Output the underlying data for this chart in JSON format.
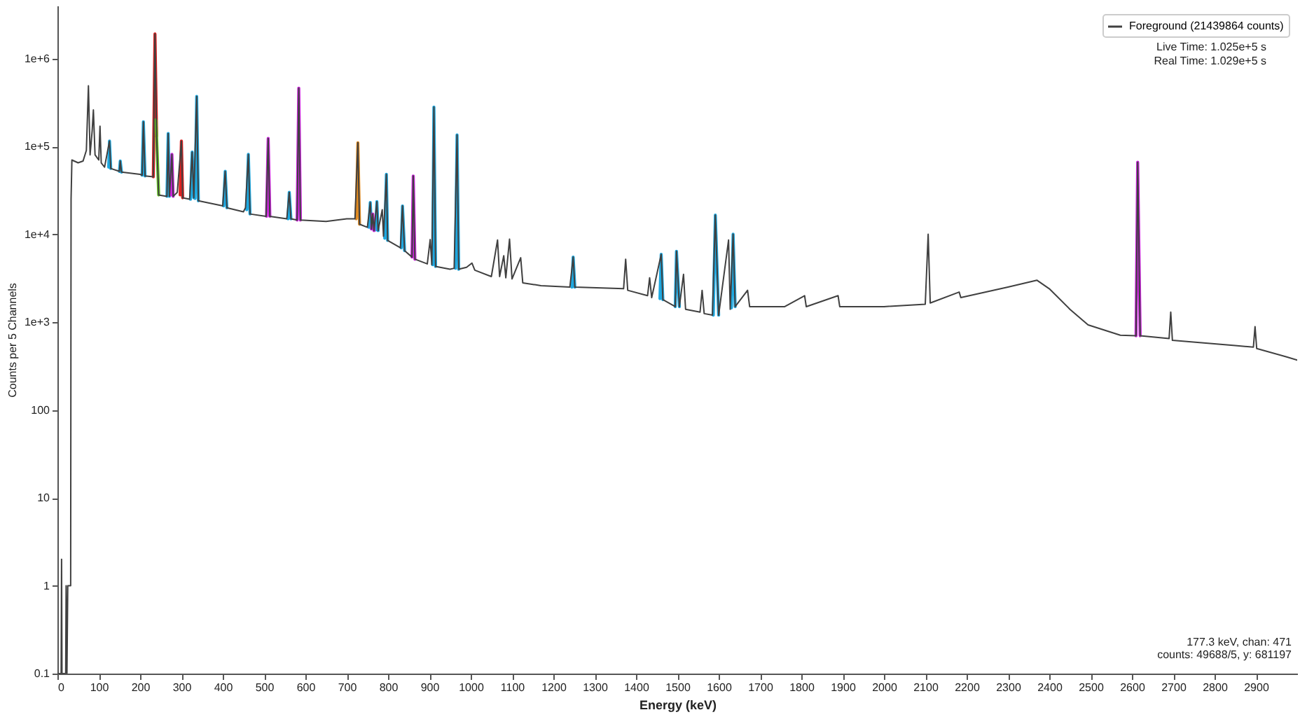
{
  "chart_data": {
    "type": "line",
    "xlabel": "Energy (keV)",
    "ylabel": "Counts per 5 Channels",
    "log": "y",
    "legend": "top right",
    "marker": "none",
    "line_style": "solid",
    "xlim": [
      0,
      3000
    ],
    "xticks": [
      0,
      100,
      200,
      300,
      400,
      500,
      600,
      700,
      800,
      900,
      1000,
      1100,
      1200,
      1300,
      1400,
      1500,
      1600,
      1700,
      1800,
      1900,
      2000,
      2100,
      2200,
      2300,
      2400,
      2500,
      2600,
      2700,
      2800,
      2900
    ],
    "ylim": [
      0.1,
      4000000
    ],
    "yticks": [
      0.1,
      1,
      10,
      100,
      {
        "value": 1000,
        "label": "1e+3"
      },
      {
        "value": 10000,
        "label": "1e+4"
      },
      {
        "value": 100000,
        "label": "1e+5"
      },
      {
        "value": 1000000,
        "label": "1e+6"
      }
    ],
    "annotations": [
      "Live Time: 1.025e+5 s",
      "Real Time: 1.029e+5 s",
      "177.3 keV, chan: 471",
      "counts: 49688/5, y: 681197"
    ],
    "series": [
      {
        "name": "Foreground (21439864 counts)",
        "color": "#404040",
        "x": [
          0,
          9,
          10,
          11,
          20,
          21,
          23,
          25,
          29,
          32,
          33,
          35,
          50,
          62,
          70,
          75,
          79,
          84,
          87,
          91,
          100,
          103,
          106,
          114,
          126,
          129,
          150,
          152,
          155,
          200,
          205,
          208,
          212,
          232,
          236,
          240,
          245,
          265,
          268,
          271,
          277,
          280,
          290,
          300,
          303,
          320,
          326,
          330,
          337,
          341,
          400,
          406,
          410,
          450,
          455,
          462,
          466,
          505,
          510,
          514,
          555,
          561,
          565,
          580,
          584,
          588,
          650,
          700,
          720,
          727,
          731,
          750,
          757,
          760,
          763,
          766,
          773,
          776,
          786,
          789,
          796,
          799,
          830,
          835,
          840,
          858,
          861,
          865,
          895,
          902,
          906,
          911,
          915,
          950,
          960,
          967,
          971,
          990,
          1003,
          1010,
          1050,
          1065,
          1070,
          1080,
          1085,
          1094,
          1100,
          1121,
          1126,
          1170,
          1240,
          1248,
          1252,
          1370,
          1375,
          1380,
          1428,
          1433,
          1438,
          1461,
          1465,
          1495,
          1498,
          1505,
          1515,
          1520,
          1555,
          1560,
          1565,
          1585,
          1592,
          1600,
          1624,
          1628,
          1635,
          1640,
          1670,
          1675,
          1760,
          1808,
          1812,
          1889,
          1893,
          2000,
          2100,
          2107,
          2112,
          2182,
          2186,
          2300,
          2370,
          2400,
          2450,
          2494,
          2572,
          2610,
          2614,
          2620,
          2690,
          2694,
          2698,
          2774,
          2850,
          2894,
          2898,
          2902,
          2976,
          3000
        ],
        "values": [
          0.1,
          0.1,
          2,
          0.1,
          0.1,
          1,
          0.1,
          1,
          1,
          1,
          25000,
          70000,
          65000,
          68000,
          90000,
          490000,
          80000,
          150000,
          260000,
          80000,
          70000,
          170000,
          65000,
          58000,
          115000,
          56000,
          52000,
          68000,
          51000,
          48000,
          47000,
          190000,
          46000,
          45000,
          1900000,
          130000,
          28000,
          27000,
          140000,
          27000,
          81000,
          27000,
          30000,
          115000,
          26000,
          25000,
          86000,
          26000,
          370000,
          24000,
          21000,
          52000,
          20000,
          18000,
          20000,
          81000,
          17000,
          16000,
          123000,
          16000,
          15000,
          30000,
          15000,
          14500,
          460000,
          14500,
          14000,
          15000,
          15000,
          110000,
          13000,
          12000,
          23000,
          11500,
          17000,
          11000,
          23500,
          11000,
          19000,
          9500,
          48000,
          8500,
          7000,
          21000,
          6500,
          5500,
          46000,
          5200,
          4600,
          8700,
          4500,
          280000,
          4300,
          4000,
          4100,
          135000,
          4000,
          4200,
          4700,
          3900,
          3300,
          8600,
          3300,
          5700,
          3200,
          8800,
          3100,
          5400,
          2800,
          2600,
          2500,
          5500,
          2500,
          2400,
          5200,
          2300,
          2000,
          3200,
          1900,
          5900,
          1800,
          1500,
          6400,
          1500,
          3500,
          1400,
          1300,
          2300,
          1250,
          1200,
          16500,
          1200,
          8600,
          1400,
          10000,
          1500,
          2300,
          1500,
          1500,
          2000,
          1500,
          2000,
          1500,
          1500,
          1600,
          10000,
          1650,
          2200,
          1900,
          2500,
          3000,
          2400,
          1400,
          930,
          710,
          700,
          66000,
          700,
          650,
          1300,
          620,
          580,
          540,
          520,
          890,
          500,
          400,
          370
        ]
      },
      {
        "color": "#1ea8e0",
        "x": [
          124,
          126,
          129,
          null,
          150,
          152,
          155,
          null,
          205,
          208,
          212,
          null,
          265,
          268,
          271,
          null,
          322,
          326,
          330,
          null,
          333,
          337,
          341,
          null,
          402,
          406,
          410,
          null,
          458,
          462,
          466,
          null,
          558,
          561,
          565,
          null,
          754,
          757,
          760,
          null,
          770,
          773,
          776,
          null,
          792,
          796,
          799,
          null,
          832,
          835,
          840,
          null,
          908,
          911,
          915,
          null,
          963,
          967,
          971,
          null,
          1245,
          1248,
          1252,
          null,
          1458,
          1461,
          1465,
          null,
          1495,
          1498,
          1505,
          null,
          1587,
          1592,
          1600,
          null,
          1631,
          1635,
          1640
        ],
        "values": [
          58000,
          115000,
          56000,
          null,
          52000,
          68000,
          51000,
          null,
          47000,
          190000,
          46000,
          null,
          27000,
          140000,
          27000,
          null,
          25000,
          86000,
          26000,
          null,
          25500,
          370000,
          24000,
          null,
          21000,
          52000,
          20000,
          null,
          19000,
          81000,
          17000,
          null,
          15000,
          30000,
          15000,
          null,
          12000,
          23000,
          11500,
          null,
          11200,
          23500,
          11000,
          null,
          9000,
          48000,
          8500,
          null,
          7000,
          21000,
          6500,
          null,
          4500,
          280000,
          4300,
          null,
          4100,
          135000,
          4000,
          null,
          2500,
          5500,
          2500,
          null,
          1850,
          5900,
          1800,
          null,
          1500,
          6400,
          1500,
          null,
          1200,
          16500,
          1200,
          null,
          1450,
          10000,
          1500
        ]
      },
      {
        "color": "#cc22dd",
        "x": [
          274,
          277,
          280,
          null,
          506,
          510,
          514,
          null,
          580,
          584,
          588,
          null,
          760,
          763,
          766,
          null,
          858,
          861,
          865,
          null,
          2610,
          2614,
          2620
        ],
        "values": [
          28000,
          81000,
          27000,
          null,
          16000,
          123000,
          16000,
          null,
          14500,
          460000,
          14500,
          null,
          11500,
          17000,
          11000,
          null,
          5500,
          46000,
          5200,
          null,
          700,
          66000,
          700
        ]
      },
      {
        "color": "#e02020",
        "x": [
          232,
          236,
          240,
          null,
          297,
          300,
          303
        ],
        "values": [
          45000,
          1900000,
          130000,
          null,
          28000,
          115000,
          26000
        ]
      },
      {
        "color": "#e08a20",
        "x": [
          723,
          727,
          731
        ],
        "values": [
          15000,
          110000,
          13000
        ]
      },
      {
        "color": "#66cc22",
        "x": [
          238,
          240,
          245
        ],
        "values": [
          200000,
          130000,
          28000
        ]
      }
    ]
  }
}
